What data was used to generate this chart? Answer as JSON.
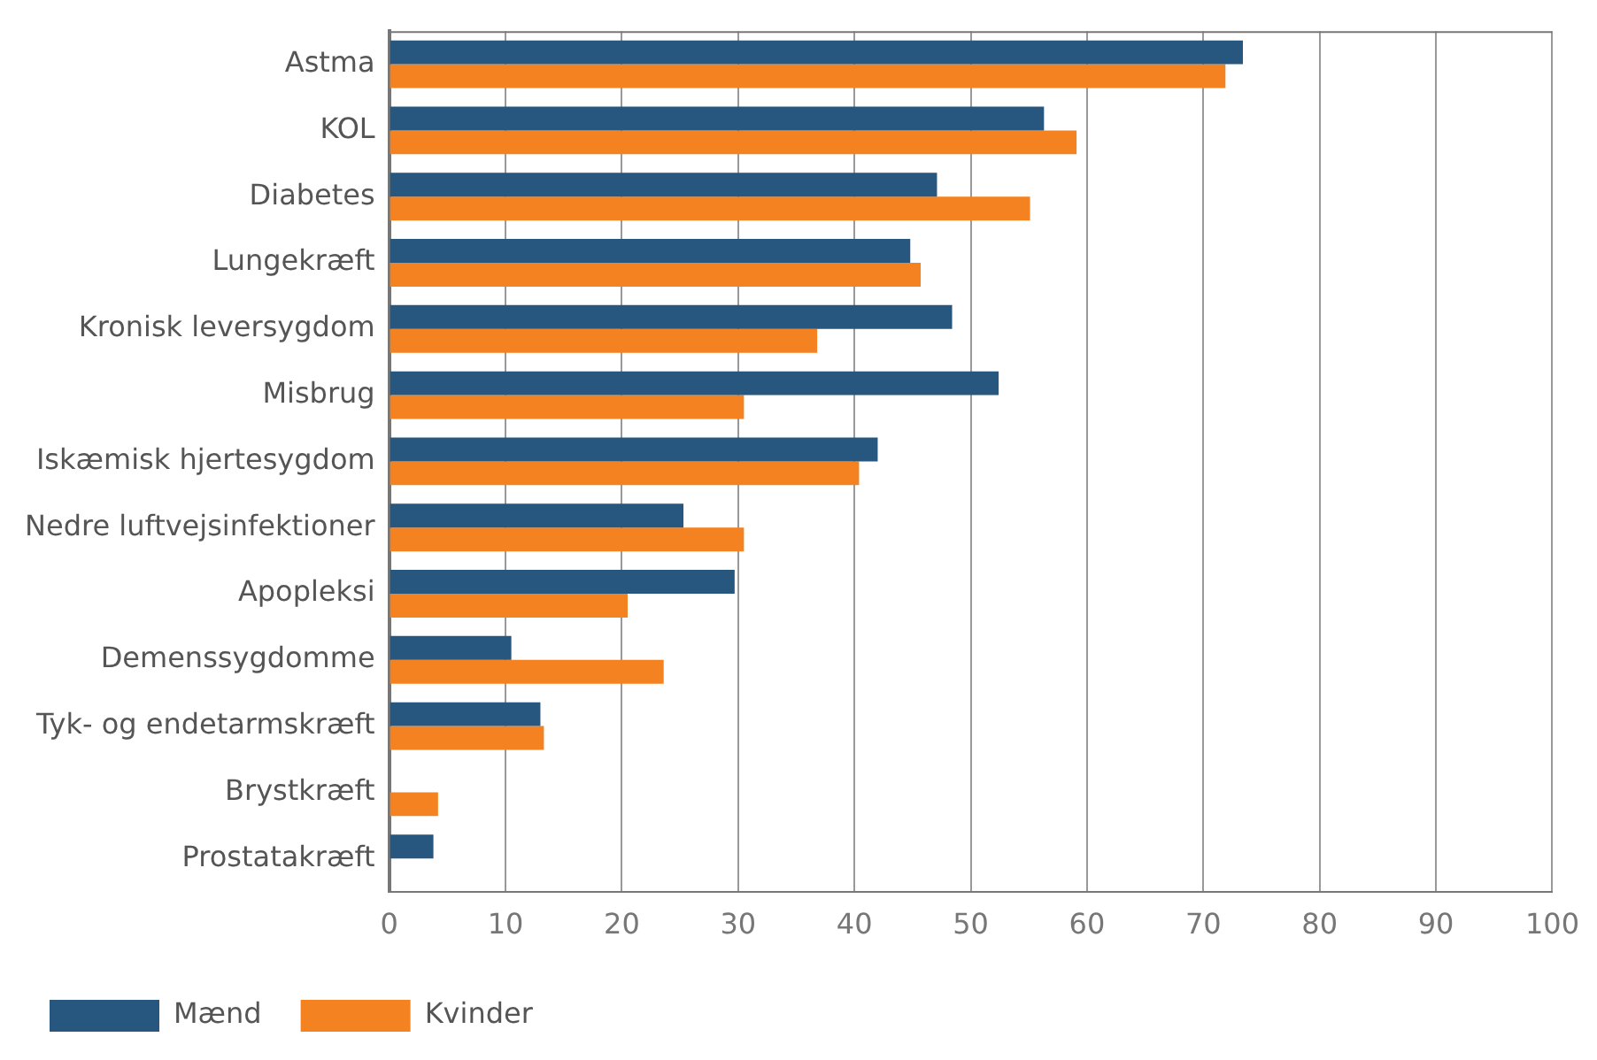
{
  "chart_data": {
    "type": "bar",
    "orientation": "horizontal",
    "categories": [
      "Astma",
      "KOL",
      "Diabetes",
      "Lungekræft",
      "Kronisk leversygdom",
      "Misbrug",
      "Iskæmisk hjertesygdom",
      "Nedre luftvejsinfektioner",
      "Apopleksi",
      "Demenssygdomme",
      "Tyk- og endetarmskræft",
      "Brystkræft",
      "Prostatakræft"
    ],
    "series": [
      {
        "name": "Mænd",
        "color": "#27567f",
        "values": [
          73.4,
          56.3,
          47.1,
          44.8,
          48.4,
          52.4,
          42.0,
          25.3,
          29.7,
          10.5,
          13.0,
          null,
          3.8
        ]
      },
      {
        "name": "Kvinder",
        "color": "#f48221",
        "values": [
          71.9,
          59.1,
          55.1,
          45.7,
          36.8,
          30.5,
          40.4,
          30.5,
          20.5,
          23.6,
          13.3,
          4.2,
          null
        ]
      }
    ],
    "xlim": [
      0,
      100
    ],
    "xticks": [
      0,
      10,
      20,
      30,
      40,
      50,
      60,
      70,
      80,
      90,
      100
    ],
    "grid": "x",
    "legend": "bottom left"
  }
}
